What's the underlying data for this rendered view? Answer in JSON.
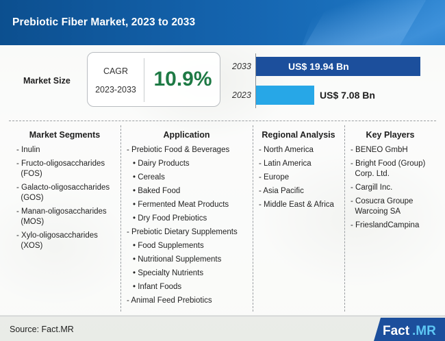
{
  "title": "Prebiotic Fiber Market, 2023 to 2033",
  "market_size": {
    "label": "Market Size",
    "cagr_label": "CAGR",
    "cagr_period": "2023-2033",
    "cagr_value": "10.9%"
  },
  "chart_data": {
    "type": "bar",
    "orientation": "horizontal",
    "categories": [
      "2033",
      "2023"
    ],
    "values": [
      19.94,
      7.08
    ],
    "value_labels": [
      "US$ 19.94 Bn",
      "US$ 7.08 Bn"
    ],
    "unit": "US$ Bn",
    "colors": [
      "#1c4f9c",
      "#27a7e7"
    ]
  },
  "columns": [
    {
      "heading": "Market Segments",
      "items": [
        {
          "text": "- Inulin"
        },
        {
          "text": "- Fructo-oligosaccharides"
        },
        {
          "text": "  (FOS)",
          "cont": true
        },
        {
          "text": "- Galacto-oligosaccharides"
        },
        {
          "text": "  (GOS)",
          "cont": true
        },
        {
          "text": "- Manan-oligosaccharides"
        },
        {
          "text": "  (MOS)",
          "cont": true
        },
        {
          "text": "- Xylo-oligosaccharides"
        },
        {
          "text": "  (XOS)",
          "cont": true
        }
      ]
    },
    {
      "heading": "Application",
      "items": [
        {
          "text": "- Prebiotic Food & Beverages"
        },
        {
          "text": "• Dairy Products",
          "sub": true
        },
        {
          "text": "• Cereals",
          "sub": true
        },
        {
          "text": "• Baked Food",
          "sub": true
        },
        {
          "text": "• Fermented Meat Products",
          "sub": true
        },
        {
          "text": "• Dry Food Prebiotics",
          "sub": true
        },
        {
          "text": "- Prebiotic Dietary Supplements"
        },
        {
          "text": "• Food Supplements",
          "sub": true
        },
        {
          "text": "• Nutritional Supplements",
          "sub": true
        },
        {
          "text": "• Specialty Nutrients",
          "sub": true
        },
        {
          "text": "• Infant Foods",
          "sub": true
        },
        {
          "text": "- Animal Feed Prebiotics"
        }
      ]
    },
    {
      "heading": "Regional Analysis",
      "items": [
        {
          "text": "- North America"
        },
        {
          "text": "- Latin America"
        },
        {
          "text": "- Europe"
        },
        {
          "text": "- Asia Pacific"
        },
        {
          "text": "- Middle East & Africa"
        }
      ]
    },
    {
      "heading": "Key Players",
      "items": [
        {
          "text": "- BENEO GmbH"
        },
        {
          "text": "- Bright Food (Group)"
        },
        {
          "text": "  Corp. Ltd.",
          "cont": true
        },
        {
          "text": "- Cargill Inc."
        },
        {
          "text": "- Cosucra Groupe"
        },
        {
          "text": "  Warcoing SA",
          "cont": true
        },
        {
          "text": "- FrieslandCampina"
        }
      ]
    }
  ],
  "footer": {
    "source": "Source: Fact.MR",
    "logo_left": "Fact",
    "logo_right": ".MR"
  }
}
